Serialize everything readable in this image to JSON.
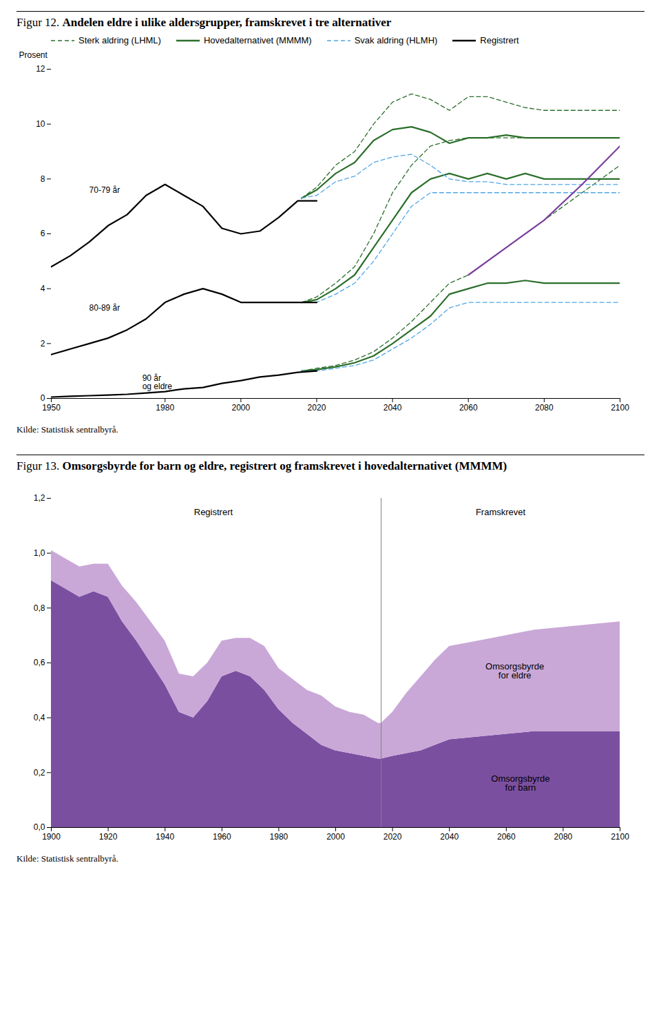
{
  "chart_data": [
    {
      "type": "line",
      "title": "Figur 12. Andelen eldre i ulike aldersgrupper, framskrevet i tre alternativer",
      "ylabel": "Prosent",
      "xlim": [
        1950,
        2100
      ],
      "xticks": [
        1950,
        1980,
        2000,
        2020,
        2040,
        2060,
        2080,
        2100
      ],
      "ylim": [
        0,
        12
      ],
      "yticks": [
        0,
        2,
        4,
        6,
        8,
        10,
        12
      ],
      "legend": "upper left",
      "series": [
        {
          "name": "Sterk aldring (LHML)",
          "color": "#2a6e2a",
          "line_style": "dashed",
          "x": [
            2016,
            2020,
            2025,
            2030,
            2035,
            2040,
            2045,
            2050,
            2055,
            2060,
            2065,
            2070,
            2075,
            2080,
            2085,
            2090,
            2095,
            2100
          ],
          "values": [
            7.3,
            7.7,
            8.5,
            9.0,
            10.0,
            10.8,
            11.1,
            10.9,
            10.5,
            11.0,
            11.0,
            10.8,
            10.6,
            10.5,
            10.5,
            10.5,
            10.5,
            10.5
          ]
        },
        {
          "name": "Sterk aldring (LHML)",
          "color": "#2a6e2a",
          "line_style": "dashed",
          "x": [
            2016,
            2020,
            2025,
            2030,
            2035,
            2040,
            2045,
            2050,
            2055,
            2060,
            2065,
            2070,
            2075,
            2080,
            2085,
            2090,
            2095,
            2100
          ],
          "values": [
            3.5,
            3.7,
            4.2,
            4.8,
            6.0,
            7.5,
            8.5,
            9.2,
            9.4,
            9.5,
            9.5,
            9.5,
            9.5,
            9.5,
            9.5,
            9.5,
            9.5,
            9.5
          ]
        },
        {
          "name": "Sterk aldring (LHML)",
          "color": "#2a6e2a",
          "line_style": "dashed",
          "x": [
            2016,
            2020,
            2025,
            2030,
            2035,
            2040,
            2045,
            2050,
            2055,
            2060,
            2065,
            2070,
            2075,
            2080,
            2085,
            2090,
            2095,
            2100
          ],
          "values": [
            1.0,
            1.1,
            1.2,
            1.4,
            1.7,
            2.2,
            2.8,
            3.5,
            4.2,
            4.5,
            5.0,
            5.5,
            6.0,
            6.5,
            7.0,
            7.5,
            8.0,
            8.5
          ]
        },
        {
          "name": "Hovedalternativet (MMMM)",
          "color": "#2a6e2a",
          "line_style": "solid",
          "x": [
            2016,
            2020,
            2025,
            2030,
            2035,
            2040,
            2045,
            2050,
            2055,
            2060,
            2065,
            2070,
            2075,
            2080,
            2085,
            2090,
            2095,
            2100
          ],
          "values": [
            7.3,
            7.6,
            8.2,
            8.6,
            9.4,
            9.8,
            9.9,
            9.7,
            9.3,
            9.5,
            9.5,
            9.6,
            9.5,
            9.5,
            9.5,
            9.5,
            9.5,
            9.5
          ]
        },
        {
          "name": "Hovedalternativet (MMMM)",
          "color": "#2a6e2a",
          "line_style": "solid",
          "x": [
            2016,
            2020,
            2025,
            2030,
            2035,
            2040,
            2045,
            2050,
            2055,
            2060,
            2065,
            2070,
            2075,
            2080,
            2085,
            2090,
            2095,
            2100
          ],
          "values": [
            3.5,
            3.6,
            4.0,
            4.5,
            5.5,
            6.5,
            7.5,
            8.0,
            8.2,
            8.0,
            8.2,
            8.0,
            8.2,
            8.0,
            8.0,
            8.0,
            8.0,
            8.0
          ]
        },
        {
          "name": "Hovedalternativet (MMMM)",
          "color": "#2a6e2a",
          "line_style": "solid",
          "x": [
            2016,
            2020,
            2025,
            2030,
            2035,
            2040,
            2045,
            2050,
            2055,
            2060,
            2065,
            2070,
            2075,
            2080,
            2085,
            2090,
            2095,
            2100
          ],
          "values": [
            1.0,
            1.05,
            1.15,
            1.3,
            1.55,
            2.0,
            2.5,
            3.0,
            3.8,
            4.0,
            4.2,
            4.2,
            4.3,
            4.2,
            4.2,
            4.2,
            4.2,
            4.2
          ]
        },
        {
          "name": "Svak aldring (HLMH)",
          "color": "#4da6e8",
          "line_style": "dashed",
          "x": [
            2016,
            2020,
            2025,
            2030,
            2035,
            2040,
            2045,
            2050,
            2055,
            2060,
            2065,
            2070,
            2075,
            2080,
            2085,
            2090,
            2095,
            2100
          ],
          "values": [
            7.3,
            7.4,
            7.9,
            8.1,
            8.6,
            8.8,
            8.9,
            8.5,
            8.0,
            7.9,
            7.9,
            7.8,
            7.8,
            7.8,
            7.8,
            7.8,
            7.8,
            7.8
          ]
        },
        {
          "name": "Svak aldring (HLMH)",
          "color": "#4da6e8",
          "line_style": "dashed",
          "x": [
            2016,
            2020,
            2025,
            2030,
            2035,
            2040,
            2045,
            2050,
            2055,
            2060,
            2065,
            2070,
            2075,
            2080,
            2085,
            2090,
            2095,
            2100
          ],
          "values": [
            3.5,
            3.5,
            3.8,
            4.2,
            5.0,
            6.0,
            7.0,
            7.5,
            7.5,
            7.5,
            7.5,
            7.5,
            7.5,
            7.5,
            7.5,
            7.5,
            7.5,
            7.5
          ]
        },
        {
          "name": "Svak aldring (HLMH)",
          "color": "#4da6e8",
          "line_style": "dashed",
          "x": [
            2016,
            2020,
            2025,
            2030,
            2035,
            2040,
            2045,
            2050,
            2055,
            2060,
            2065,
            2070,
            2075,
            2080,
            2085,
            2090,
            2095,
            2100
          ],
          "values": [
            1.0,
            1.0,
            1.1,
            1.2,
            1.4,
            1.8,
            2.2,
            2.7,
            3.3,
            3.5,
            3.5,
            3.5,
            3.5,
            3.5,
            3.5,
            3.5,
            3.5,
            3.5
          ]
        },
        {
          "name": "Registrert",
          "color": "#000000",
          "line_style": "solid",
          "x": [
            1950,
            1955,
            1960,
            1965,
            1970,
            1975,
            1980,
            1985,
            1990,
            1995,
            2000,
            2005,
            2010,
            2015,
            2020
          ],
          "values": [
            4.8,
            5.2,
            5.7,
            6.3,
            6.7,
            7.4,
            7.8,
            7.4,
            7.0,
            6.2,
            6.0,
            6.1,
            6.6,
            7.2,
            7.2
          ]
        },
        {
          "name": "Registrert",
          "color": "#000000",
          "line_style": "solid",
          "x": [
            1950,
            1955,
            1960,
            1965,
            1970,
            1975,
            1980,
            1985,
            1990,
            1995,
            2000,
            2005,
            2010,
            2015,
            2020
          ],
          "values": [
            1.6,
            1.8,
            2.0,
            2.2,
            2.5,
            2.9,
            3.5,
            3.8,
            4.0,
            3.8,
            3.5,
            3.5,
            3.5,
            3.5,
            3.5
          ]
        },
        {
          "name": "Registrert",
          "color": "#000000",
          "line_style": "solid",
          "x": [
            1950,
            1955,
            1960,
            1965,
            1970,
            1975,
            1980,
            1985,
            1990,
            1995,
            2000,
            2005,
            2010,
            2015,
            2020
          ],
          "values": [
            0.05,
            0.08,
            0.1,
            0.12,
            0.15,
            0.2,
            0.25,
            0.35,
            0.4,
            0.55,
            0.65,
            0.78,
            0.85,
            0.95,
            1.0
          ]
        },
        {
          "color": "#7b3fa0",
          "line_style": "solid",
          "x": [
            2060,
            2070,
            2080,
            2090,
            2100
          ],
          "values": [
            4.5,
            5.5,
            6.5,
            7.8,
            9.2
          ]
        }
      ],
      "annotations": [
        {
          "text": "70-79 år",
          "x": 1960,
          "y": 7.5
        },
        {
          "text": "80-89 år",
          "x": 1960,
          "y": 3.2
        },
        {
          "text": "90 år\nog eldre",
          "x": 1974,
          "y": 0.35
        }
      ],
      "caption": "Kilde: Statistisk sentralbyrå."
    },
    {
      "type": "area",
      "stacked": true,
      "title": "Figur 13. Omsorgsbyrde for barn og eldre, registrert og framskrevet i hovedalternativet (MMMM)",
      "xlim": [
        1900,
        2100
      ],
      "xticks": [
        1900,
        1920,
        1940,
        1960,
        1980,
        2000,
        2020,
        2040,
        2060,
        2080,
        2100
      ],
      "ylim": [
        0.0,
        1.2
      ],
      "yticks": [
        {
          "value": 0.0,
          "label": "0,0"
        },
        {
          "value": 0.2,
          "label": "0,2"
        },
        {
          "value": 0.4,
          "label": "0,4"
        },
        {
          "value": 0.6,
          "label": "0,6"
        },
        {
          "value": 0.8,
          "label": "0,8"
        },
        {
          "value": 1.0,
          "label": "1,0"
        },
        {
          "value": 1.2,
          "label": "1,2"
        }
      ],
      "x": [
        1900,
        1905,
        1910,
        1915,
        1920,
        1925,
        1930,
        1935,
        1940,
        1945,
        1950,
        1955,
        1960,
        1965,
        1970,
        1975,
        1980,
        1985,
        1990,
        1995,
        2000,
        2005,
        2010,
        2015,
        2016,
        2016,
        2020,
        2025,
        2030,
        2035,
        2040,
        2050,
        2060,
        2070,
        2080,
        2090,
        2100
      ],
      "series": [
        {
          "color": "#7b4fa0",
          "values": [
            0.9,
            0.87,
            0.84,
            0.86,
            0.84,
            0.75,
            0.68,
            0.6,
            0.52,
            0.42,
            0.4,
            0.46,
            0.55,
            0.57,
            0.55,
            0.5,
            0.43,
            0.38,
            0.34,
            0.3,
            0.28,
            0.27,
            0.26,
            0.25,
            0.25,
            0.25,
            0.26,
            0.27,
            0.28,
            0.3,
            0.32,
            0.33,
            0.34,
            0.35,
            0.35,
            0.35,
            0.35
          ]
        },
        {
          "color": "#c9a8d8",
          "values": [
            0.11,
            0.11,
            0.11,
            0.1,
            0.12,
            0.13,
            0.14,
            0.15,
            0.16,
            0.14,
            0.15,
            0.14,
            0.13,
            0.12,
            0.14,
            0.16,
            0.15,
            0.16,
            0.16,
            0.18,
            0.16,
            0.15,
            0.15,
            0.13,
            0.13,
            0.13,
            0.16,
            0.22,
            0.27,
            0.31,
            0.34,
            0.35,
            0.36,
            0.37,
            0.38,
            0.39,
            0.4
          ]
        }
      ],
      "vlines": [
        2016
      ],
      "annotations": [
        {
          "text": "Registrert",
          "x": 1957,
          "y": 1.15
        },
        {
          "text": "Framskrevet",
          "x": 2058,
          "y": 1.15
        },
        {
          "text": "Omsorgsbyrde\nfor eldre",
          "x": 2063,
          "y": 0.57
        },
        {
          "text": "Omsorgsbyrde\nfor barn",
          "x": 2065,
          "y": 0.16
        }
      ],
      "caption": "Kilde: Statistisk sentralbyrå."
    }
  ]
}
